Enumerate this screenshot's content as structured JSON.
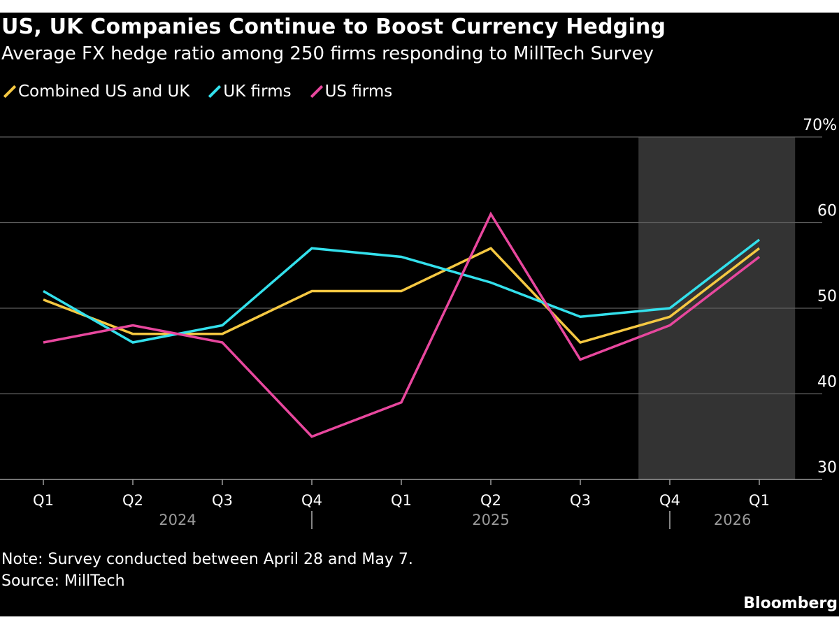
{
  "title": "US, UK Companies Continue to Boost Currency Hedging",
  "subtitle": "Average FX hedge ratio among 250 firms responding to MillTech Survey",
  "note": "Note: Survey conducted between April 28 and May 7.",
  "source": "Source: MillTech",
  "brand": "Bloomberg",
  "chart_data": {
    "type": "line",
    "categories": [
      "Q1",
      "Q2",
      "Q3",
      "Q4",
      "Q1",
      "Q2",
      "Q3",
      "Q4",
      "Q1"
    ],
    "year_labels": [
      "2024",
      "2025",
      "2026"
    ],
    "y_ticks": [
      "70%",
      "60",
      "50",
      "40",
      "30"
    ],
    "ylim": [
      30,
      70
    ],
    "grid": true,
    "legend_position": "top-left",
    "axis_position": "right",
    "forecast_shading": {
      "from_category_index": 6.65,
      "to_category_index": 8.4,
      "color": "#333333"
    },
    "series": [
      {
        "name": "Combined US and UK",
        "color": "#f5c842",
        "values": [
          51,
          47,
          47,
          52,
          52,
          57,
          46,
          49,
          57
        ]
      },
      {
        "name": "UK firms",
        "color": "#33e0ec",
        "values": [
          52,
          46,
          48,
          57,
          56,
          53,
          49,
          50,
          58
        ]
      },
      {
        "name": "US firms",
        "color": "#e8479e",
        "values": [
          46,
          48,
          46,
          35,
          39,
          61,
          44,
          48,
          56
        ]
      }
    ]
  }
}
